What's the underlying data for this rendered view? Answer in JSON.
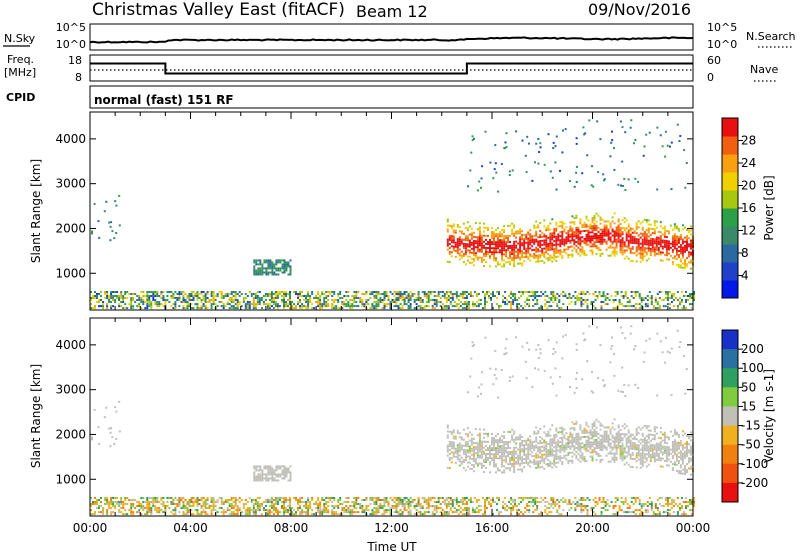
{
  "header": {
    "title": "Christmas Valley East (fitACF)",
    "beam": "Beam 12",
    "date": "09/Nov/2016"
  },
  "strips": {
    "noise": {
      "left_label": "N.Sky",
      "right_label": "N.Search",
      "tick_top": "10^5",
      "tick_bottom": "10^0"
    },
    "freq": {
      "left_label_line1": "Freq.",
      "left_label_line2": "[MHz]",
      "right_label": "Nave",
      "left_ticks": [
        "18",
        "8"
      ],
      "right_ticks": [
        "60",
        "0"
      ]
    },
    "cpid": {
      "label": "CPID",
      "mode": "normal (fast) 151 RF"
    }
  },
  "chart_data": [
    {
      "type": "heatmap",
      "quantity": "power",
      "ylabel": "Slant Range [km]",
      "yticks": [
        1000,
        2000,
        3000,
        4000
      ],
      "ylim": [
        180,
        4600
      ],
      "xlim_hours": [
        0,
        24
      ],
      "colorbar": {
        "label": "Power [dB]",
        "ticks": [
          "28",
          "24",
          "20",
          "16",
          "12",
          "8",
          "4"
        ],
        "range": [
          0,
          32
        ],
        "colors": [
          "#0018e8",
          "#2040c8",
          "#2a6aa0",
          "#3a8a6a",
          "#2ca048",
          "#a8c810",
          "#f0d000",
          "#f8a010",
          "#f06010",
          "#e81010"
        ]
      }
    },
    {
      "type": "heatmap",
      "quantity": "velocity",
      "ylabel": "Slant Range [km]",
      "yticks": [
        1000,
        2000,
        3000,
        4000
      ],
      "ylim": [
        180,
        4600
      ],
      "xlim_hours": [
        0,
        24
      ],
      "colorbar": {
        "label": "Velocity [m s-1]",
        "ticks": [
          "200",
          "100",
          "50",
          "15",
          "-15",
          "-50",
          "-100",
          "-200"
        ],
        "colors": [
          "#1830c8",
          "#2a70a0",
          "#30a060",
          "#80cc40",
          "#c0c0b8",
          "#f0b020",
          "#f08010",
          "#f05010",
          "#e81010"
        ]
      },
      "xlabel": "Time UT",
      "xticks": [
        "00:00",
        "04:00",
        "08:00",
        "12:00",
        "16:00",
        "20:00",
        "00:00"
      ]
    }
  ]
}
